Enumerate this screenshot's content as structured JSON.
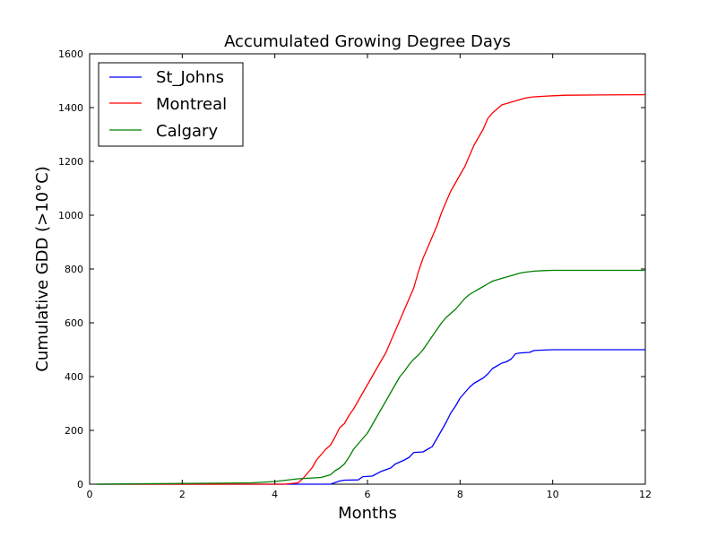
{
  "chart_data": {
    "type": "line",
    "title": "Accumulated Growing Degree Days",
    "xlabel": "Months",
    "ylabel": "Cumulative GDD (>10°C)",
    "xlim": [
      0,
      12
    ],
    "ylim": [
      0,
      1600
    ],
    "xticks": [
      0,
      2,
      4,
      6,
      8,
      10,
      12
    ],
    "yticks": [
      0,
      200,
      400,
      600,
      800,
      1000,
      1200,
      1400,
      1600
    ],
    "grid": false,
    "legend_position": "top-left",
    "series": [
      {
        "name": "St_Johns",
        "color": "#0000ff",
        "x": [
          0.15,
          4.0,
          5.2,
          5.4,
          5.5,
          5.8,
          5.9,
          6.1,
          6.3,
          6.5,
          6.6,
          6.8,
          6.9,
          7.0,
          7.2,
          7.3,
          7.4,
          7.5,
          7.6,
          7.7,
          7.8,
          7.9,
          8.0,
          8.1,
          8.2,
          8.3,
          8.4,
          8.5,
          8.6,
          8.7,
          8.8,
          8.9,
          9.0,
          9.1,
          9.2,
          9.3,
          9.5,
          9.6,
          9.7,
          10.0,
          12.0
        ],
        "values": [
          0,
          0,
          0,
          12,
          15,
          16,
          28,
          30,
          48,
          60,
          75,
          90,
          100,
          118,
          120,
          130,
          140,
          170,
          200,
          230,
          265,
          290,
          320,
          340,
          360,
          375,
          385,
          395,
          410,
          430,
          440,
          450,
          455,
          465,
          485,
          488,
          490,
          497,
          498,
          500,
          500
        ]
      },
      {
        "name": "Montreal",
        "color": "#ff0000",
        "x": [
          0.15,
          4.2,
          4.5,
          4.6,
          4.7,
          4.8,
          4.9,
          5.0,
          5.1,
          5.2,
          5.3,
          5.4,
          5.5,
          5.6,
          5.7,
          5.8,
          5.9,
          6.0,
          6.1,
          6.2,
          6.3,
          6.4,
          6.5,
          6.6,
          6.7,
          6.8,
          6.9,
          7.0,
          7.1,
          7.2,
          7.3,
          7.4,
          7.5,
          7.6,
          7.7,
          7.8,
          7.9,
          8.0,
          8.1,
          8.2,
          8.3,
          8.4,
          8.5,
          8.6,
          8.7,
          8.8,
          8.9,
          9.0,
          9.1,
          9.2,
          9.3,
          9.4,
          9.5,
          9.6,
          9.7,
          9.8,
          10.0,
          10.3,
          11.0,
          12.0
        ],
        "values": [
          0,
          0,
          5,
          20,
          40,
          60,
          90,
          110,
          130,
          145,
          175,
          210,
          225,
          255,
          280,
          310,
          340,
          370,
          400,
          430,
          460,
          490,
          530,
          570,
          610,
          650,
          690,
          730,
          790,
          840,
          880,
          920,
          960,
          1010,
          1050,
          1090,
          1120,
          1150,
          1180,
          1220,
          1260,
          1290,
          1320,
          1360,
          1380,
          1395,
          1410,
          1415,
          1420,
          1425,
          1430,
          1435,
          1438,
          1440,
          1441,
          1442,
          1444,
          1446,
          1447,
          1448
        ]
      },
      {
        "name": "Calgary",
        "color": "#008000",
        "x": [
          0.15,
          3.5,
          4.0,
          4.5,
          5.0,
          5.2,
          5.3,
          5.4,
          5.5,
          5.6,
          5.7,
          5.8,
          5.9,
          6.0,
          6.1,
          6.2,
          6.3,
          6.4,
          6.5,
          6.6,
          6.7,
          6.8,
          6.9,
          7.0,
          7.1,
          7.2,
          7.3,
          7.4,
          7.5,
          7.6,
          7.7,
          7.8,
          7.9,
          8.0,
          8.1,
          8.2,
          8.3,
          8.4,
          8.5,
          8.6,
          8.7,
          8.8,
          8.9,
          9.0,
          9.1,
          9.2,
          9.3,
          9.4,
          9.5,
          9.6,
          9.8,
          10.0,
          12.0
        ],
        "values": [
          0,
          5,
          10,
          20,
          25,
          35,
          50,
          60,
          75,
          100,
          130,
          150,
          170,
          190,
          220,
          250,
          280,
          310,
          340,
          370,
          400,
          420,
          445,
          465,
          480,
          500,
          525,
          550,
          575,
          600,
          620,
          635,
          650,
          670,
          690,
          705,
          715,
          725,
          735,
          745,
          755,
          760,
          765,
          770,
          775,
          780,
          785,
          788,
          790,
          792,
          794,
          795,
          795
        ]
      }
    ]
  }
}
